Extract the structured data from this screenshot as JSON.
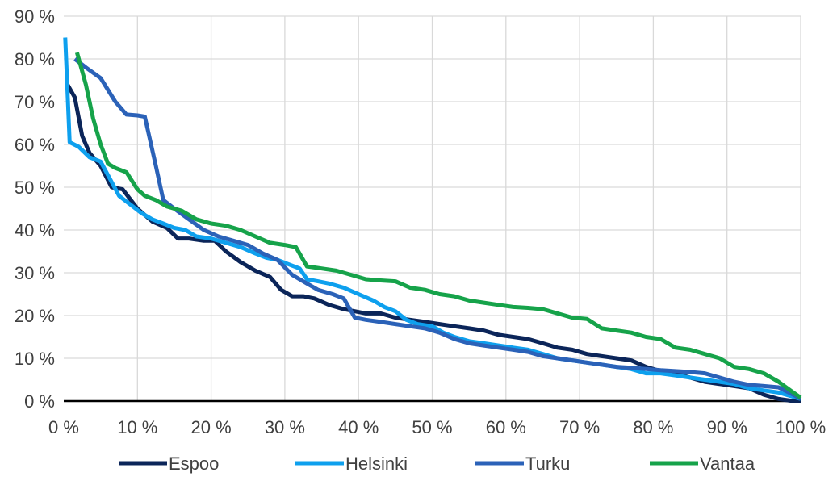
{
  "chart_data": {
    "type": "line",
    "title": "",
    "xlabel": "",
    "ylabel": "",
    "xlim": [
      0,
      100
    ],
    "ylim": [
      0,
      90
    ],
    "x_ticks": [
      0,
      10,
      20,
      30,
      40,
      50,
      60,
      70,
      80,
      90,
      100
    ],
    "y_ticks": [
      0,
      10,
      20,
      30,
      40,
      50,
      60,
      70,
      80,
      90
    ],
    "x_tick_labels": [
      "0 %",
      "10 %",
      "20 %",
      "30 %",
      "40 %",
      "50 %",
      "60 %",
      "70 %",
      "80 %",
      "90 %",
      "100 %"
    ],
    "y_tick_labels": [
      "0 %",
      "10 %",
      "20 %",
      "30 %",
      "40 %",
      "50 %",
      "60 %",
      "70 %",
      "80 %",
      "90 %"
    ],
    "grid": "vertical-and-horizontal",
    "legend_position": "bottom",
    "series": [
      {
        "name": "Espoo",
        "color": "#0b2559",
        "points": [
          [
            0.5,
            74
          ],
          [
            1.5,
            71
          ],
          [
            2.5,
            62
          ],
          [
            3.5,
            58
          ],
          [
            5,
            55
          ],
          [
            6.5,
            50
          ],
          [
            8,
            49.5
          ],
          [
            10,
            45
          ],
          [
            12,
            42
          ],
          [
            14,
            40.5
          ],
          [
            15.5,
            38
          ],
          [
            17,
            38
          ],
          [
            19,
            37.5
          ],
          [
            20.5,
            37.5
          ],
          [
            22,
            35
          ],
          [
            24,
            32.5
          ],
          [
            26,
            30.5
          ],
          [
            28,
            29
          ],
          [
            29.5,
            26
          ],
          [
            31,
            24.5
          ],
          [
            32.5,
            24.5
          ],
          [
            34,
            24
          ],
          [
            36,
            22.5
          ],
          [
            38,
            21.5
          ],
          [
            39.5,
            21
          ],
          [
            41,
            20.5
          ],
          [
            43,
            20.5
          ],
          [
            45,
            19.5
          ],
          [
            47,
            19
          ],
          [
            49,
            18.5
          ],
          [
            51,
            18
          ],
          [
            53,
            17.5
          ],
          [
            55,
            17
          ],
          [
            57,
            16.5
          ],
          [
            59,
            15.5
          ],
          [
            61,
            15
          ],
          [
            63,
            14.5
          ],
          [
            65,
            13.5
          ],
          [
            67,
            12.5
          ],
          [
            69,
            12
          ],
          [
            71,
            11
          ],
          [
            73,
            10.5
          ],
          [
            75,
            10
          ],
          [
            77,
            9.5
          ],
          [
            79,
            8
          ],
          [
            81,
            7
          ],
          [
            83,
            6.5
          ],
          [
            85,
            5.5
          ],
          [
            87,
            4.5
          ],
          [
            89,
            4
          ],
          [
            91,
            3.5
          ],
          [
            93,
            3
          ],
          [
            95,
            1.5
          ],
          [
            97,
            0.5
          ],
          [
            99,
            0
          ],
          [
            100,
            0
          ]
        ]
      },
      {
        "name": "Helsinki",
        "color": "#0ea0ee",
        "points": [
          [
            0.2,
            85
          ],
          [
            0.8,
            60.5
          ],
          [
            2,
            59.5
          ],
          [
            3.5,
            57
          ],
          [
            5,
            56
          ],
          [
            7.5,
            48
          ],
          [
            9,
            46
          ],
          [
            10.5,
            44
          ],
          [
            12,
            42.5
          ],
          [
            13.5,
            41.5
          ],
          [
            15,
            40.5
          ],
          [
            16.5,
            40
          ],
          [
            18,
            38.5
          ],
          [
            20,
            38
          ],
          [
            22,
            37
          ],
          [
            24,
            36
          ],
          [
            26,
            34.5
          ],
          [
            27.5,
            33.5
          ],
          [
            29,
            33
          ],
          [
            30.5,
            32
          ],
          [
            32,
            31
          ],
          [
            33,
            28.5
          ],
          [
            34.5,
            28
          ],
          [
            36,
            27.5
          ],
          [
            38,
            26.5
          ],
          [
            40,
            25
          ],
          [
            42,
            23.5
          ],
          [
            43.5,
            22
          ],
          [
            45,
            21
          ],
          [
            46.5,
            19
          ],
          [
            48,
            18
          ],
          [
            50,
            17.5
          ],
          [
            51.5,
            16
          ],
          [
            53,
            15
          ],
          [
            55,
            14
          ],
          [
            57,
            13.5
          ],
          [
            59,
            13
          ],
          [
            61,
            12.5
          ],
          [
            63,
            12
          ],
          [
            65,
            11
          ],
          [
            67,
            10
          ],
          [
            69,
            9.5
          ],
          [
            71,
            9
          ],
          [
            73,
            8.5
          ],
          [
            75,
            8
          ],
          [
            77,
            7.5
          ],
          [
            79,
            6.5
          ],
          [
            81,
            6.5
          ],
          [
            83,
            6
          ],
          [
            85,
            5.5
          ],
          [
            87,
            5
          ],
          [
            89,
            4.5
          ],
          [
            91,
            4
          ],
          [
            93,
            3
          ],
          [
            95,
            2.5
          ],
          [
            97,
            2
          ],
          [
            99,
            1
          ],
          [
            100,
            0.5
          ]
        ]
      },
      {
        "name": "Turku",
        "color": "#2b62b8",
        "points": [
          [
            1.5,
            80
          ],
          [
            3,
            78
          ],
          [
            5,
            75.5
          ],
          [
            7,
            70
          ],
          [
            8.5,
            67
          ],
          [
            10,
            66.8
          ],
          [
            11,
            66.5
          ],
          [
            12.5,
            55
          ],
          [
            13.5,
            47
          ],
          [
            15,
            45
          ],
          [
            17,
            42.5
          ],
          [
            19,
            40
          ],
          [
            21,
            38.5
          ],
          [
            23,
            37.5
          ],
          [
            25,
            36.5
          ],
          [
            27,
            34.5
          ],
          [
            29,
            33
          ],
          [
            31,
            29.5
          ],
          [
            33,
            27.5
          ],
          [
            34.5,
            26
          ],
          [
            36.5,
            25
          ],
          [
            38,
            24
          ],
          [
            39.5,
            19.5
          ],
          [
            41,
            19
          ],
          [
            43,
            18.5
          ],
          [
            45,
            18
          ],
          [
            47,
            17.5
          ],
          [
            49,
            17
          ],
          [
            51,
            16
          ],
          [
            53,
            14.5
          ],
          [
            55,
            13.5
          ],
          [
            57,
            13
          ],
          [
            59,
            12.5
          ],
          [
            61,
            12
          ],
          [
            63,
            11.5
          ],
          [
            65,
            10.5
          ],
          [
            67,
            10
          ],
          [
            69,
            9.5
          ],
          [
            71,
            9
          ],
          [
            73,
            8.5
          ],
          [
            75,
            8
          ],
          [
            77,
            7.8
          ],
          [
            79,
            7.5
          ],
          [
            81,
            7.2
          ],
          [
            83,
            7
          ],
          [
            85,
            6.8
          ],
          [
            87,
            6.5
          ],
          [
            89,
            5.5
          ],
          [
            91,
            4.5
          ],
          [
            93,
            3.8
          ],
          [
            95,
            3.5
          ],
          [
            97,
            3.2
          ],
          [
            99,
            1.5
          ],
          [
            100,
            0.5
          ]
        ]
      },
      {
        "name": "Vantaa",
        "color": "#16a34a",
        "points": [
          [
            1.8,
            81.5
          ],
          [
            3,
            74
          ],
          [
            4,
            66
          ],
          [
            5,
            60
          ],
          [
            6,
            55.5
          ],
          [
            7,
            54.5
          ],
          [
            8.5,
            53.5
          ],
          [
            10,
            49.5
          ],
          [
            11,
            48
          ],
          [
            12.5,
            47
          ],
          [
            14,
            45.5
          ],
          [
            16,
            44.5
          ],
          [
            18,
            42.5
          ],
          [
            20,
            41.5
          ],
          [
            22,
            41
          ],
          [
            24,
            40
          ],
          [
            26,
            38.5
          ],
          [
            28,
            37
          ],
          [
            30,
            36.5
          ],
          [
            31.5,
            36
          ],
          [
            33,
            31.5
          ],
          [
            35,
            31
          ],
          [
            37,
            30.5
          ],
          [
            39,
            29.5
          ],
          [
            41,
            28.5
          ],
          [
            43,
            28.2
          ],
          [
            45,
            28
          ],
          [
            47,
            26.5
          ],
          [
            49,
            26
          ],
          [
            51,
            25
          ],
          [
            53,
            24.5
          ],
          [
            55,
            23.5
          ],
          [
            57,
            23
          ],
          [
            59,
            22.5
          ],
          [
            61,
            22
          ],
          [
            63,
            21.8
          ],
          [
            65,
            21.5
          ],
          [
            67,
            20.5
          ],
          [
            69,
            19.5
          ],
          [
            71,
            19.2
          ],
          [
            73,
            17
          ],
          [
            75,
            16.5
          ],
          [
            77,
            16
          ],
          [
            79,
            15
          ],
          [
            81,
            14.5
          ],
          [
            83,
            12.5
          ],
          [
            85,
            12
          ],
          [
            87,
            11
          ],
          [
            89,
            10
          ],
          [
            91,
            8
          ],
          [
            93,
            7.5
          ],
          [
            95,
            6.5
          ],
          [
            97,
            4.5
          ],
          [
            99,
            2
          ],
          [
            100,
            0.8
          ]
        ]
      }
    ]
  }
}
